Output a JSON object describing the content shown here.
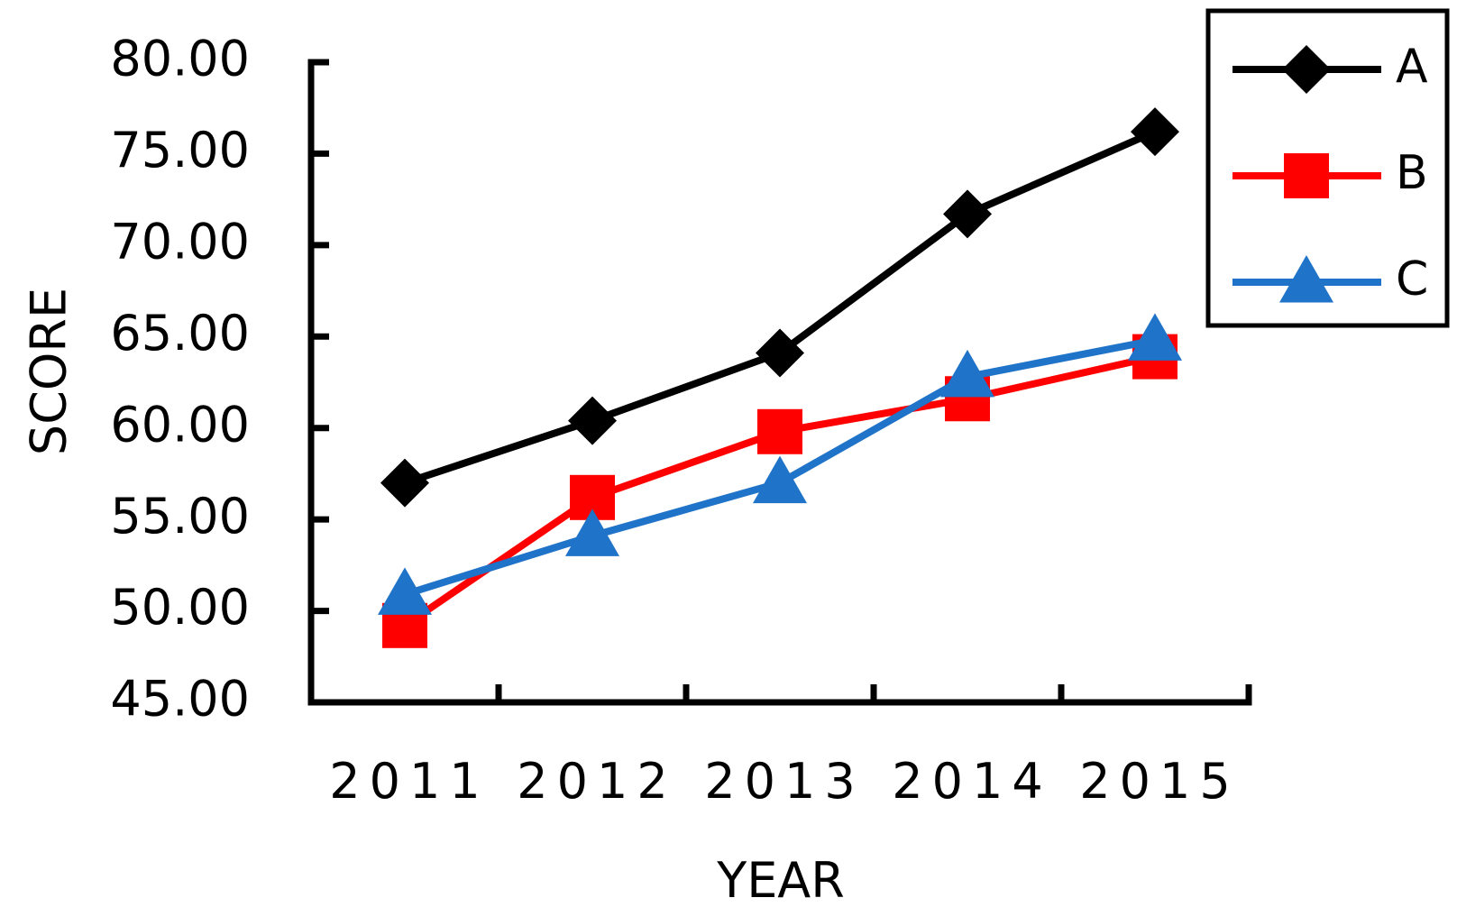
{
  "chart_data": {
    "type": "line",
    "title": "",
    "xlabel": "YEAR",
    "ylabel": "SCORE",
    "categories": [
      "2011",
      "2012",
      "2013",
      "2014",
      "2015"
    ],
    "ylim": [
      45,
      80
    ],
    "ytick_values": [
      45,
      50,
      55,
      60,
      65,
      70,
      75,
      80
    ],
    "ytick_labels": [
      "45.00",
      "50.00",
      "55.00",
      "60.00",
      "65.00",
      "70.00",
      "75.00",
      "80.00"
    ],
    "grid": false,
    "legend_position": "top-right",
    "series": [
      {
        "name": "A",
        "color": "#000000",
        "marker": "diamond",
        "values": [
          57.0,
          60.4,
          64.1,
          71.7,
          76.2
        ]
      },
      {
        "name": "B",
        "color": "#ff0000",
        "marker": "square",
        "values": [
          49.2,
          56.2,
          59.8,
          61.6,
          63.9
        ]
      },
      {
        "name": "C",
        "color": "#1f73c8",
        "marker": "triangle",
        "values": [
          50.9,
          54.1,
          57.0,
          62.8,
          64.8
        ]
      }
    ]
  }
}
